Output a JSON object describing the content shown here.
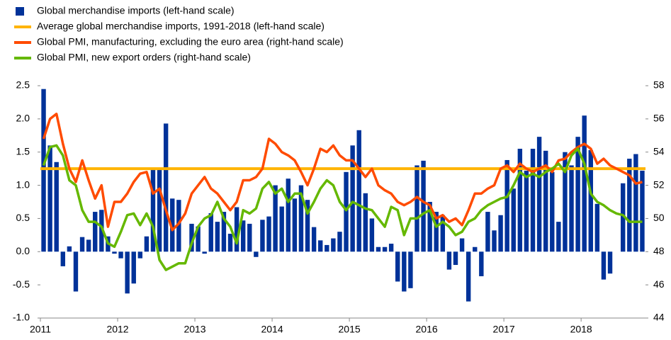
{
  "chart_data": {
    "type": "bar",
    "categories": [
      "2011",
      null,
      null,
      null,
      null,
      null,
      null,
      null,
      null,
      null,
      null,
      null,
      "2012",
      null,
      null,
      null,
      null,
      null,
      null,
      null,
      null,
      null,
      null,
      null,
      "2013",
      null,
      null,
      null,
      null,
      null,
      null,
      null,
      null,
      null,
      null,
      null,
      "2014",
      null,
      null,
      null,
      null,
      null,
      null,
      null,
      null,
      null,
      null,
      null,
      "2015",
      null,
      null,
      null,
      null,
      null,
      null,
      null,
      null,
      null,
      null,
      null,
      "2016",
      null,
      null,
      null,
      null,
      null,
      null,
      null,
      null,
      null,
      null,
      null,
      "2017",
      null,
      null,
      null,
      null,
      null,
      null,
      null,
      null,
      null,
      null,
      null,
      "2018",
      null,
      null,
      null,
      null,
      null,
      null,
      null,
      null,
      null
    ],
    "series": [
      {
        "name": "Global merchandise imports (left-hand scale)",
        "color": "#003299",
        "type": "bar",
        "values": [
          2.45,
          1.6,
          1.35,
          -0.22,
          0.08,
          -0.6,
          0.22,
          0.18,
          0.6,
          0.63,
          0.23,
          -0.03,
          -0.1,
          -0.63,
          -0.48,
          -0.1,
          0.23,
          1.25,
          1.25,
          1.93,
          0.8,
          0.78,
          0.0,
          0.42,
          0.38,
          -0.03,
          0.58,
          0.45,
          0.6,
          0.27,
          0.67,
          0.47,
          0.42,
          -0.08,
          0.48,
          0.53,
          1.0,
          0.68,
          1.1,
          0.8,
          1.0,
          0.78,
          0.37,
          0.17,
          0.1,
          0.2,
          0.3,
          1.2,
          1.6,
          1.83,
          0.88,
          0.5,
          0.07,
          0.07,
          0.12,
          -0.45,
          -0.6,
          -0.55,
          1.3,
          1.37,
          0.75,
          0.6,
          0.55,
          -0.27,
          -0.2,
          0.2,
          -0.75,
          0.07,
          -0.37,
          0.6,
          0.32,
          0.55,
          1.38,
          0.95,
          1.55,
          1.22,
          1.55,
          1.73,
          1.52,
          1.2,
          0.45,
          1.5,
          1.3,
          1.73,
          2.05,
          1.53,
          0.72,
          -0.42,
          -0.33,
          0.0,
          1.03,
          1.4,
          1.47,
          1.22
        ]
      },
      {
        "name": "Average global merchandise imports, 1991-2018 (left-hand scale)",
        "color": "#ffb400",
        "type": "hline",
        "value": 1.25
      },
      {
        "name": "Global PMI, manufacturing, excluding the euro area (right-hand scale)",
        "color": "#ff4b00",
        "type": "line",
        "axis": "y2",
        "values": [
          54.8,
          56.0,
          56.3,
          54.5,
          53.0,
          52.2,
          53.5,
          52.3,
          51.2,
          52.0,
          49.5,
          51.0,
          51.0,
          51.5,
          52.2,
          52.7,
          52.8,
          51.5,
          51.8,
          50.5,
          49.3,
          49.7,
          50.3,
          51.5,
          52.0,
          52.5,
          51.8,
          51.5,
          51.0,
          50.5,
          51.0,
          52.3,
          52.3,
          52.5,
          53.0,
          54.8,
          54.5,
          54.0,
          53.8,
          53.5,
          52.8,
          52.0,
          53.0,
          54.2,
          54.0,
          54.4,
          53.8,
          53.5,
          53.5,
          53.0,
          52.5,
          53.0,
          52.0,
          51.7,
          51.5,
          51.0,
          50.8,
          51.0,
          51.3,
          51.0,
          50.8,
          50.0,
          50.2,
          49.8,
          50.0,
          49.6,
          50.5,
          51.5,
          51.5,
          51.8,
          52.0,
          53.0,
          53.2,
          52.8,
          53.3,
          53.0,
          52.8,
          53.0,
          53.2,
          52.8,
          53.5,
          53.6,
          54.0,
          54.3,
          54.5,
          54.2,
          53.3,
          53.6,
          53.2,
          53.0,
          52.8,
          52.6,
          52.1,
          52.2
        ]
      },
      {
        "name": "Global PMI, new export orders (right-hand scale)",
        "color": "#65b800",
        "type": "line",
        "axis": "y2",
        "values": [
          53.2,
          54.3,
          54.4,
          53.8,
          52.3,
          52.0,
          50.5,
          49.8,
          49.8,
          49.5,
          48.5,
          48.3,
          49.2,
          50.2,
          50.3,
          49.6,
          50.3,
          49.5,
          47.5,
          46.9,
          47.1,
          47.3,
          47.3,
          48.5,
          49.5,
          50.0,
          50.2,
          51.0,
          50.0,
          49.5,
          48.5,
          50.5,
          50.3,
          50.6,
          51.8,
          52.2,
          51.5,
          51.8,
          51.0,
          51.5,
          51.5,
          50.3,
          51.0,
          51.8,
          52.3,
          52.0,
          51.0,
          50.5,
          51.0,
          50.8,
          50.6,
          50.5,
          50.0,
          49.5,
          50.7,
          50.5,
          49.0,
          50.0,
          50.0,
          50.3,
          50.5,
          49.5,
          49.8,
          49.5,
          49.0,
          49.2,
          49.8,
          50.0,
          50.5,
          50.8,
          51.0,
          51.2,
          51.3,
          52.0,
          52.8,
          52.5,
          52.7,
          52.5,
          52.8,
          53.0,
          53.3,
          52.8,
          53.8,
          54.2,
          53.3,
          51.5,
          51.0,
          50.8,
          50.5,
          50.3,
          50.2,
          49.8,
          49.8,
          49.8
        ]
      }
    ],
    "ylim": [
      -1.0,
      2.5
    ],
    "yticks": [
      {
        "value": -1.0,
        "label": "-1.0"
      },
      -0.5,
      {
        "value": 0,
        "label": "0.0"
      },
      0.5,
      {
        "value": 1,
        "label": "1.0"
      },
      1.5,
      {
        "value": 2,
        "label": "2.0"
      },
      2.5
    ],
    "y2lim": [
      44,
      58
    ],
    "y2ticks": [
      44,
      46,
      48,
      50,
      52,
      54,
      56,
      58
    ],
    "legend": "top-left"
  }
}
